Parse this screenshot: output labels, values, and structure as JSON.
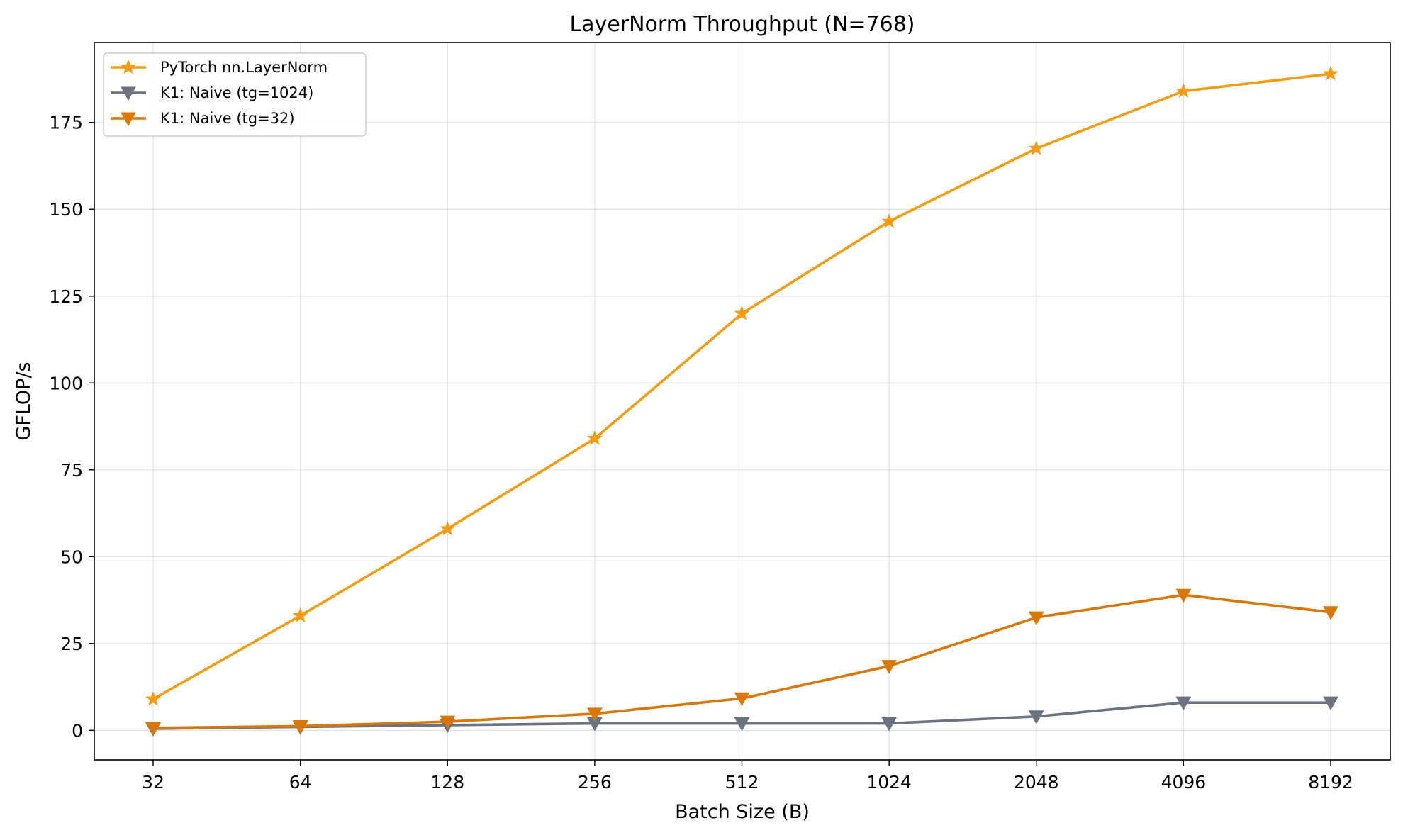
{
  "chart_data": {
    "type": "line",
    "title": "LayerNorm Throughput (N=768)",
    "xlabel": "Batch Size (B)",
    "ylabel": "GFLOP/s",
    "categories": [
      "32",
      "64",
      "128",
      "256",
      "512",
      "1024",
      "2048",
      "4096",
      "8192"
    ],
    "ylim": [
      -8.5,
      198
    ],
    "yticks": [
      0,
      25,
      50,
      75,
      100,
      125,
      150,
      175
    ],
    "grid": true,
    "legend_position": "top-left",
    "series": [
      {
        "name": "PyTorch nn.LayerNorm",
        "color": "#F39C12",
        "marker": "star",
        "values": [
          9,
          33,
          58,
          84,
          120,
          146.5,
          167.5,
          184,
          189
        ]
      },
      {
        "name": "K1: Naive (tg=1024)",
        "color": "#6B7280",
        "marker": "triangle-down",
        "values": [
          0.5,
          1,
          1.5,
          2,
          2,
          2,
          4,
          8,
          8
        ]
      },
      {
        "name": "K1: Naive (tg=32)",
        "color": "#D97706",
        "marker": "triangle-down",
        "values": [
          0.7,
          1.2,
          2.5,
          4.8,
          9.2,
          18.5,
          32.5,
          39,
          34
        ]
      }
    ]
  }
}
